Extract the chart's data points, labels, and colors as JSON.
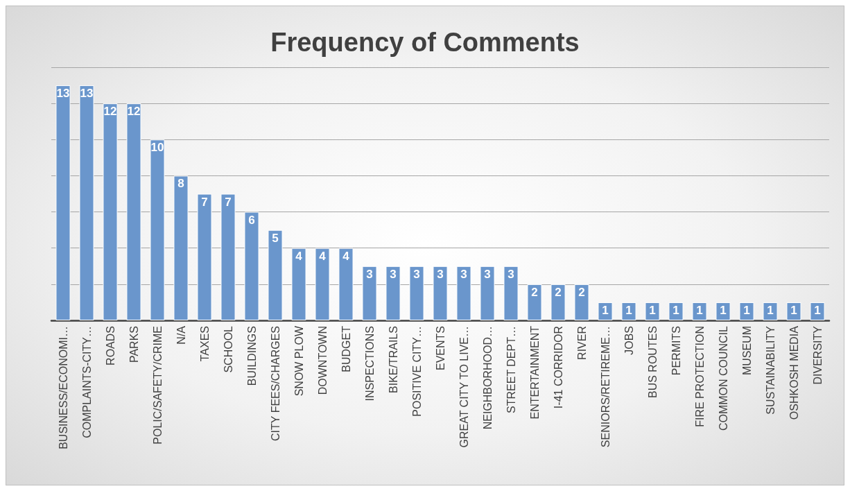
{
  "chart_data": {
    "type": "bar",
    "title": "Frequency of Comments",
    "categories": [
      "BUSINESS/ECONOMI…",
      "COMPLAINTS-CITY…",
      "ROADS",
      "PARKS",
      "POLIC/SAFETY/CRIME",
      "N/A",
      "TAXES",
      "SCHOOL",
      "BUILDINGS",
      "CITY FEES/CHARGES",
      "SNOW PLOW",
      "DOWNTOWN",
      "BUDGET",
      "INSPECTIONS",
      "BIKE/TRAILS",
      "POSITIVE CITY…",
      "EVENTS",
      "GREAT CITY TO LIVE…",
      "NEIGHBORHOOD…",
      "STREET DEPT…",
      "ENTERTAINMENT",
      "I-41 CORRIDOR",
      "RIVER",
      "SENIORS/RETIREME…",
      "JOBS",
      "BUS ROUTES",
      "PERMITS",
      "FIRE PROTECTION",
      "COMMON COUNCIL",
      "MUSEUM",
      "SUSTAINABILITY",
      "OSHKOSH MEDIA",
      "DIVERSITY"
    ],
    "values": [
      13,
      13,
      12,
      12,
      10,
      8,
      7,
      7,
      6,
      5,
      4,
      4,
      4,
      3,
      3,
      3,
      3,
      3,
      3,
      3,
      2,
      2,
      2,
      1,
      1,
      1,
      1,
      1,
      1,
      1,
      1,
      1,
      1
    ],
    "color": "#6a96cc",
    "data_labels": true,
    "ylim": [
      0,
      14
    ],
    "yticks": [
      {
        "value": 0,
        "label": null
      },
      {
        "value": 2,
        "label": null
      },
      {
        "value": 4,
        "label": null
      },
      {
        "value": 6,
        "label": null
      },
      {
        "value": 8,
        "label": null
      },
      {
        "value": 10,
        "label": null
      },
      {
        "value": 12,
        "label": null
      },
      {
        "value": 14,
        "label": null
      }
    ],
    "tick_labels": "x",
    "grid": "y"
  }
}
